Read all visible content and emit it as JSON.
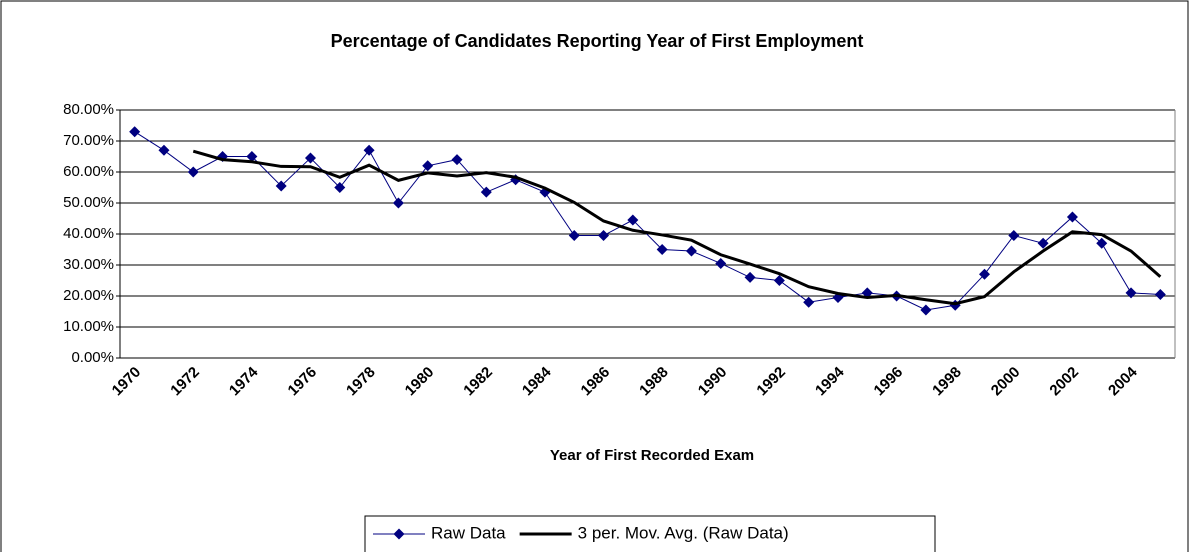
{
  "chart_data": {
    "type": "line",
    "title": "Percentage of Candidates Reporting Year of First Employment",
    "x_label": "Year of First Recorded Exam",
    "categories": [
      1970,
      null,
      1972,
      null,
      1974,
      null,
      1976,
      null,
      1978,
      null,
      1980,
      null,
      1982,
      null,
      1984,
      null,
      1986,
      null,
      1988,
      null,
      1990,
      null,
      1992,
      null,
      1994,
      null,
      1996,
      null,
      1998,
      null,
      2000,
      null,
      2002,
      null,
      2004,
      null
    ],
    "series": [
      {
        "name": "Raw Data",
        "color": "#000080",
        "marker": "diamond",
        "values": [
          73,
          67,
          60,
          65,
          65,
          55.5,
          64.5,
          55,
          67,
          50,
          62,
          64,
          53.5,
          57.5,
          53.5,
          39.5,
          39.5,
          44.5,
          35,
          34.5,
          30.5,
          26,
          25,
          18,
          19.5,
          21,
          20,
          15.5,
          17,
          27,
          39.5,
          37,
          45.5,
          37,
          21,
          20.5
        ]
      },
      {
        "name": "3 per. Mov. Avg. (Raw Data)",
        "color": "#000000",
        "values": [
          null,
          null,
          66.7,
          64,
          63.3,
          61.8,
          61.7,
          58.3,
          62.2,
          57.3,
          59.7,
          58.7,
          59.8,
          58.3,
          54.8,
          50.2,
          44.2,
          41.2,
          39.7,
          38,
          33.3,
          30.3,
          27.2,
          23,
          20.8,
          19.5,
          20.2,
          18.8,
          17.5,
          19.8,
          27.8,
          34.5,
          40.7,
          39.8,
          34.5,
          26.2
        ]
      }
    ],
    "ylim": [
      0,
      80
    ],
    "yticks": [
      {
        "value": 0,
        "label": "0.00%"
      },
      {
        "value": 10,
        "label": "10.00%"
      },
      {
        "value": 20,
        "label": "20.00%"
      },
      {
        "value": 30,
        "label": "30.00%"
      },
      {
        "value": 40,
        "label": "40.00%"
      },
      {
        "value": 50,
        "label": "50.00%"
      },
      {
        "value": 60,
        "label": "60.00%"
      },
      {
        "value": 70,
        "label": "70.00%"
      },
      {
        "value": 80,
        "label": "80.00%"
      }
    ],
    "grid": true,
    "legend": "bottom"
  }
}
